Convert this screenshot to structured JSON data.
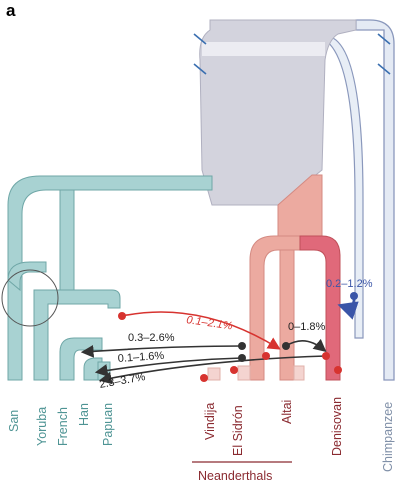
{
  "panel_label": "a",
  "populations": {
    "modern_humans": [
      "San",
      "Yoruba",
      "French",
      "Han",
      "Papuan"
    ],
    "neanderthals": [
      "Vindija",
      "El Sidrón",
      "Altai"
    ],
    "denisovan": "Denisovan",
    "outgroup": "Chimpanzee"
  },
  "group_label": "Neanderthals",
  "gene_flow": [
    {
      "from": "Altai",
      "to": "Modern humans (pre-split)",
      "label": "0.1–2.1%",
      "color": "#d7332f"
    },
    {
      "from": "Vindija",
      "to": "San/Yoruba ancestors",
      "label": "0.3–2.6%",
      "color": "#333333"
    },
    {
      "from": "Vindija",
      "to": "French/Han ancestors",
      "label": "0.1–1.6%",
      "color": "#333333"
    },
    {
      "from": "Denisovan",
      "to": "Papuan",
      "label": "2.3–3.7%",
      "color": "#333333"
    },
    {
      "from": "Altai",
      "to": "Denisovan",
      "label": "0–1.8%",
      "color": "#333333"
    },
    {
      "from": "Unknown archaic",
      "to": "Denisovan",
      "label": "0.2–1.2%",
      "color": "#3a55a8"
    }
  ],
  "colors": {
    "human": "#a8d2d2",
    "human_edge": "#6fa7a7",
    "ancestral": "#d2d2dc",
    "ancestral_edge": "#b0b0c0",
    "neanderthal": "#ecaaa0",
    "denisovan": "#e06a70",
    "chimp": "#e4eaf4",
    "chimp_edge": "#8a98bc",
    "label_neanderthal": "#8a2a30",
    "label_human": "#4e9494",
    "label_chimp": "#8090a8"
  }
}
